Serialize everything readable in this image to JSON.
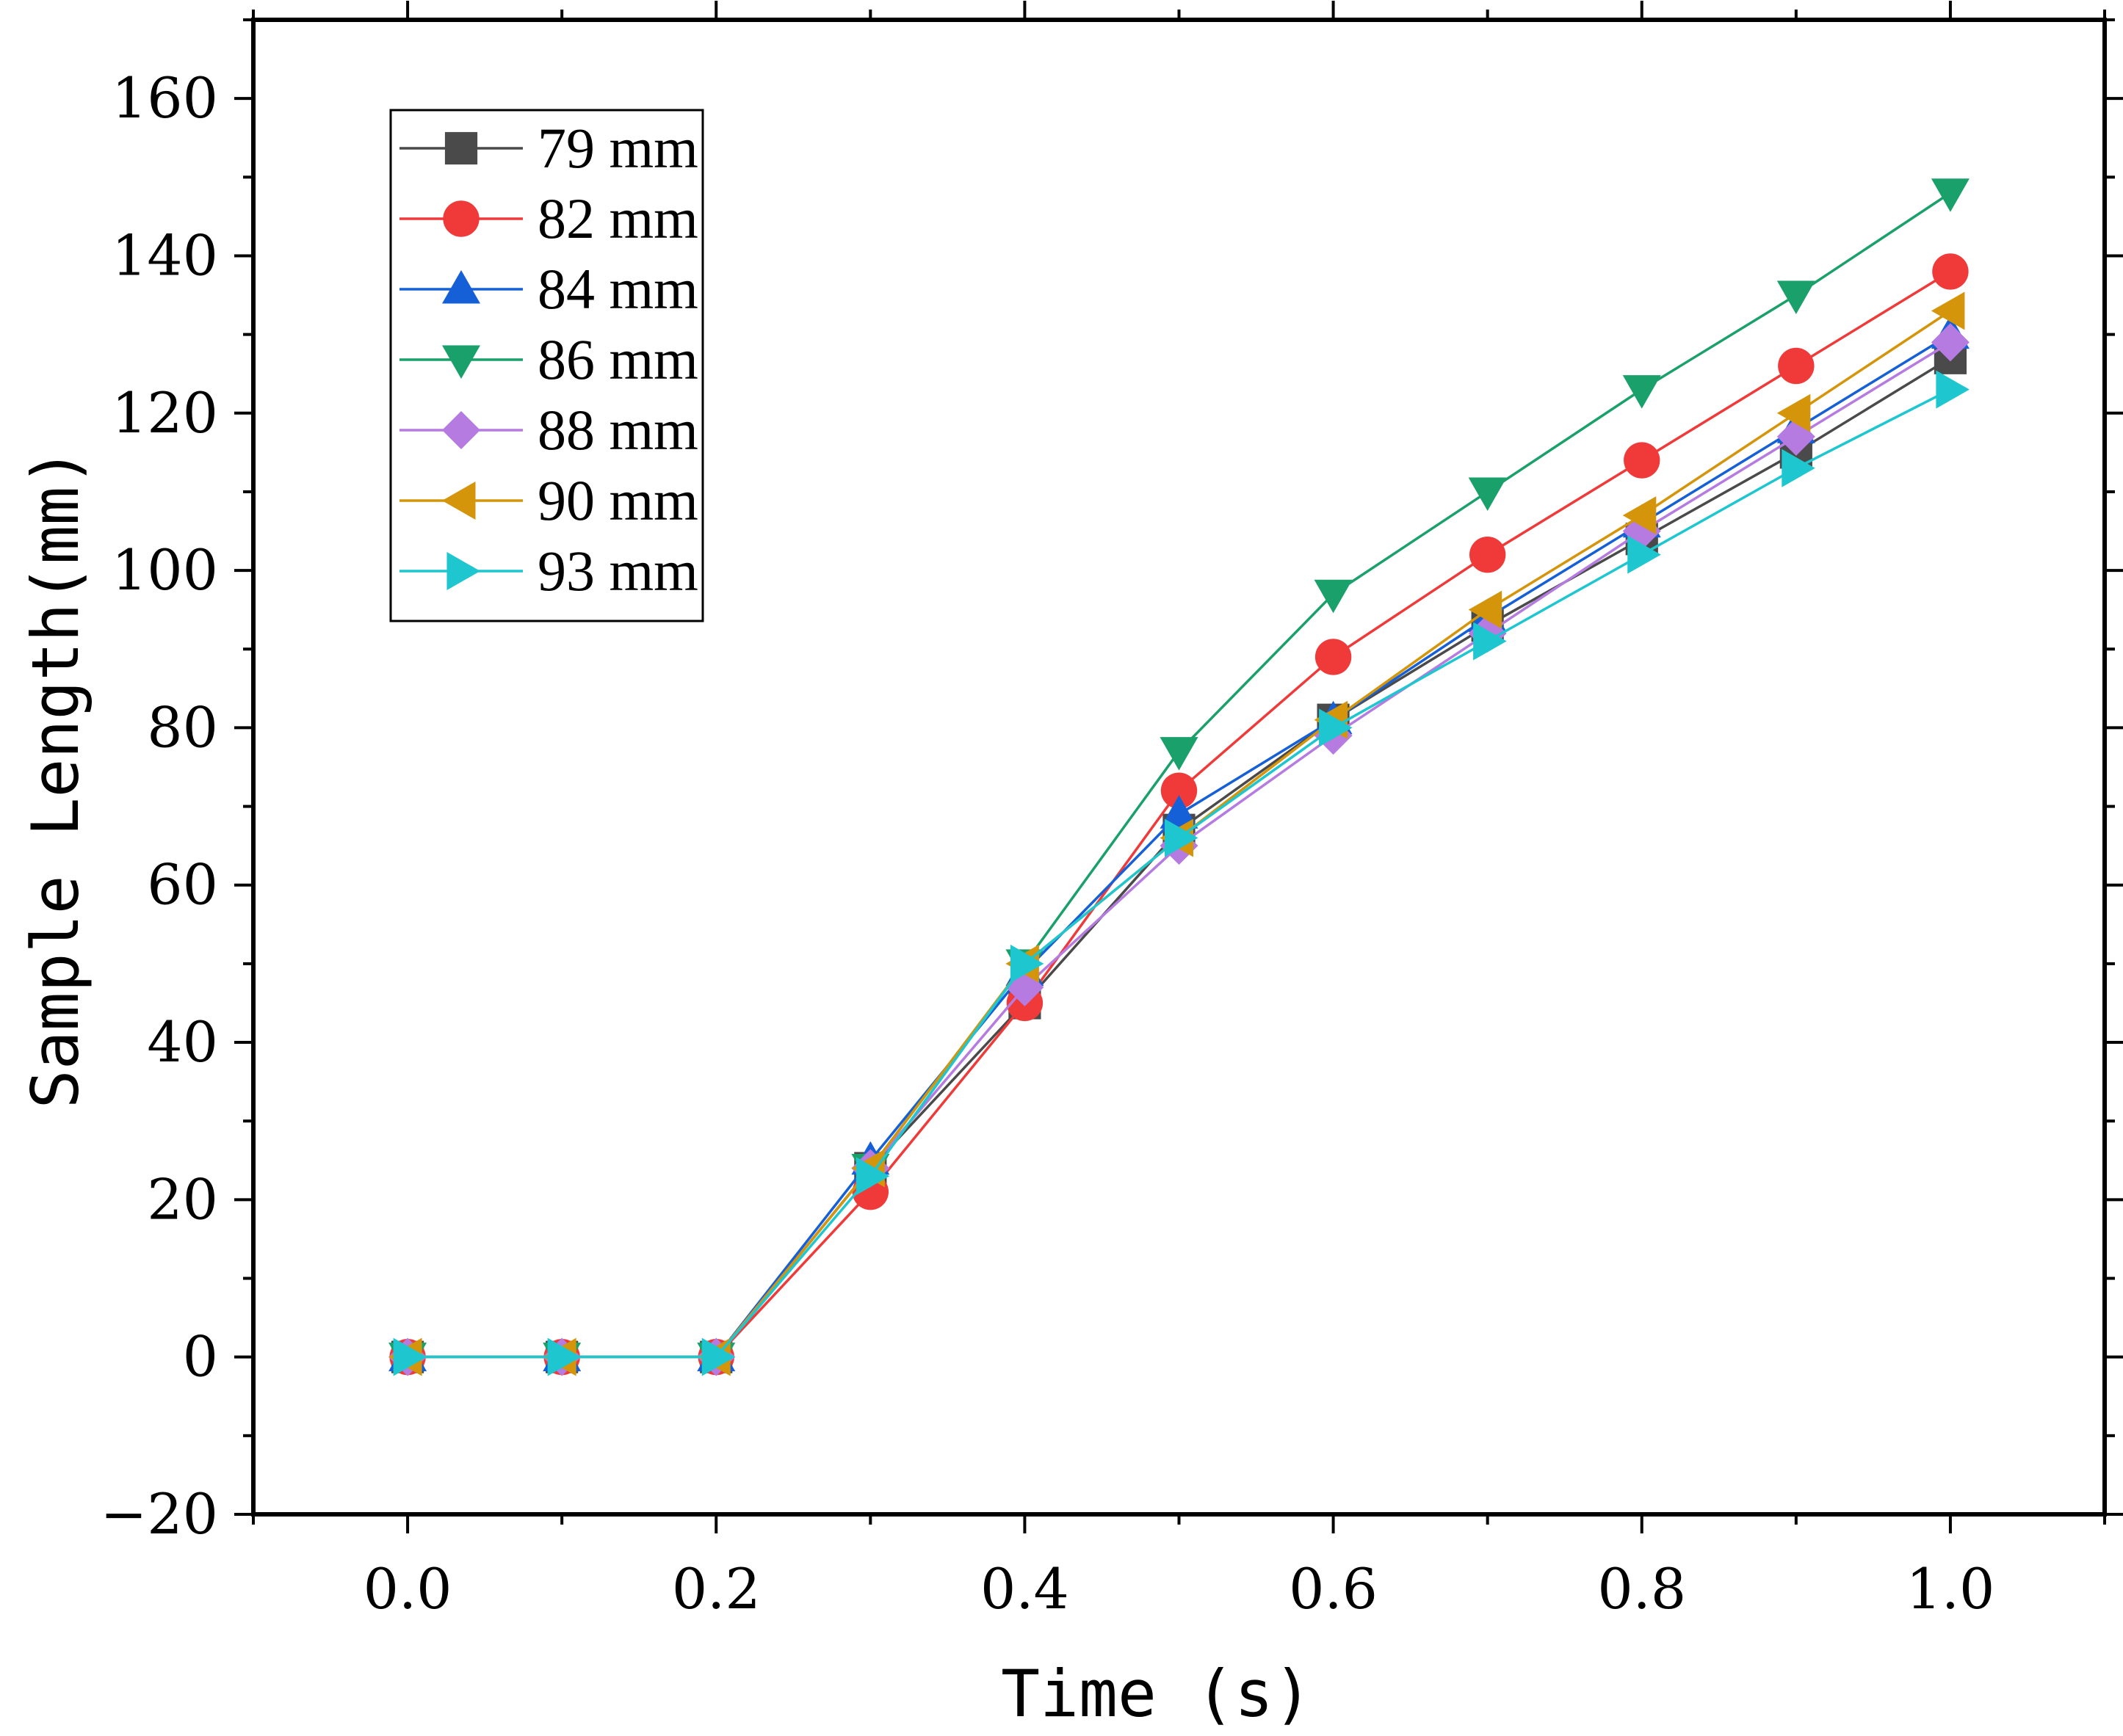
{
  "chart_data": {
    "type": "line",
    "title": "",
    "xlabel": "Time (s)",
    "ylabel": "Sample Length(mm)",
    "xlim": [
      -0.1,
      1.1
    ],
    "ylim": [
      -20,
      170
    ],
    "x_ticks": [
      0.0,
      0.2,
      0.4,
      0.6,
      0.8,
      1.0
    ],
    "x_tick_labels": [
      "0.0",
      "0.2",
      "0.4",
      "0.6",
      "0.8",
      "1.0"
    ],
    "y_ticks": [
      -20,
      0,
      20,
      40,
      60,
      80,
      100,
      120,
      140,
      160
    ],
    "y_tick_labels": [
      "−20",
      "0",
      "20",
      "40",
      "60",
      "80",
      "100",
      "120",
      "140",
      "160"
    ],
    "grid": false,
    "legend_position": "top-left",
    "x": [
      0.0,
      0.1,
      0.2,
      0.3,
      0.4,
      0.5,
      0.6,
      0.7,
      0.8,
      0.9,
      1.0
    ],
    "series": [
      {
        "name": "79 mm",
        "color": "#4a4a4a",
        "marker": "square",
        "values": [
          0,
          0,
          0,
          24,
          45,
          67,
          81,
          93,
          104,
          115,
          127
        ]
      },
      {
        "name": "82 mm",
        "color": "#f03a3a",
        "marker": "circle",
        "values": [
          0,
          0,
          0,
          21,
          45,
          72,
          89,
          102,
          114,
          126,
          138
        ]
      },
      {
        "name": "84 mm",
        "color": "#1560d6",
        "marker": "triangle-up",
        "values": [
          0,
          0,
          0,
          25,
          49,
          69,
          81,
          94,
          106,
          118,
          130
        ]
      },
      {
        "name": "86 mm",
        "color": "#1aa06a",
        "marker": "triangle-down",
        "values": [
          0,
          0,
          0,
          24,
          50,
          77,
          97,
          110,
          123,
          135,
          148
        ]
      },
      {
        "name": "88 mm",
        "color": "#b57be0",
        "marker": "diamond",
        "values": [
          0,
          0,
          0,
          24,
          47,
          65,
          79,
          92,
          105,
          117,
          129
        ]
      },
      {
        "name": "90 mm",
        "color": "#d4950a",
        "marker": "triangle-left",
        "values": [
          0,
          0,
          0,
          24,
          50,
          66,
          81,
          95,
          107,
          120,
          133
        ]
      },
      {
        "name": "93 mm",
        "color": "#1ec6cf",
        "marker": "triangle-right",
        "values": [
          0,
          0,
          0,
          23,
          50,
          66,
          80,
          91,
          102,
          113,
          123
        ]
      }
    ]
  }
}
